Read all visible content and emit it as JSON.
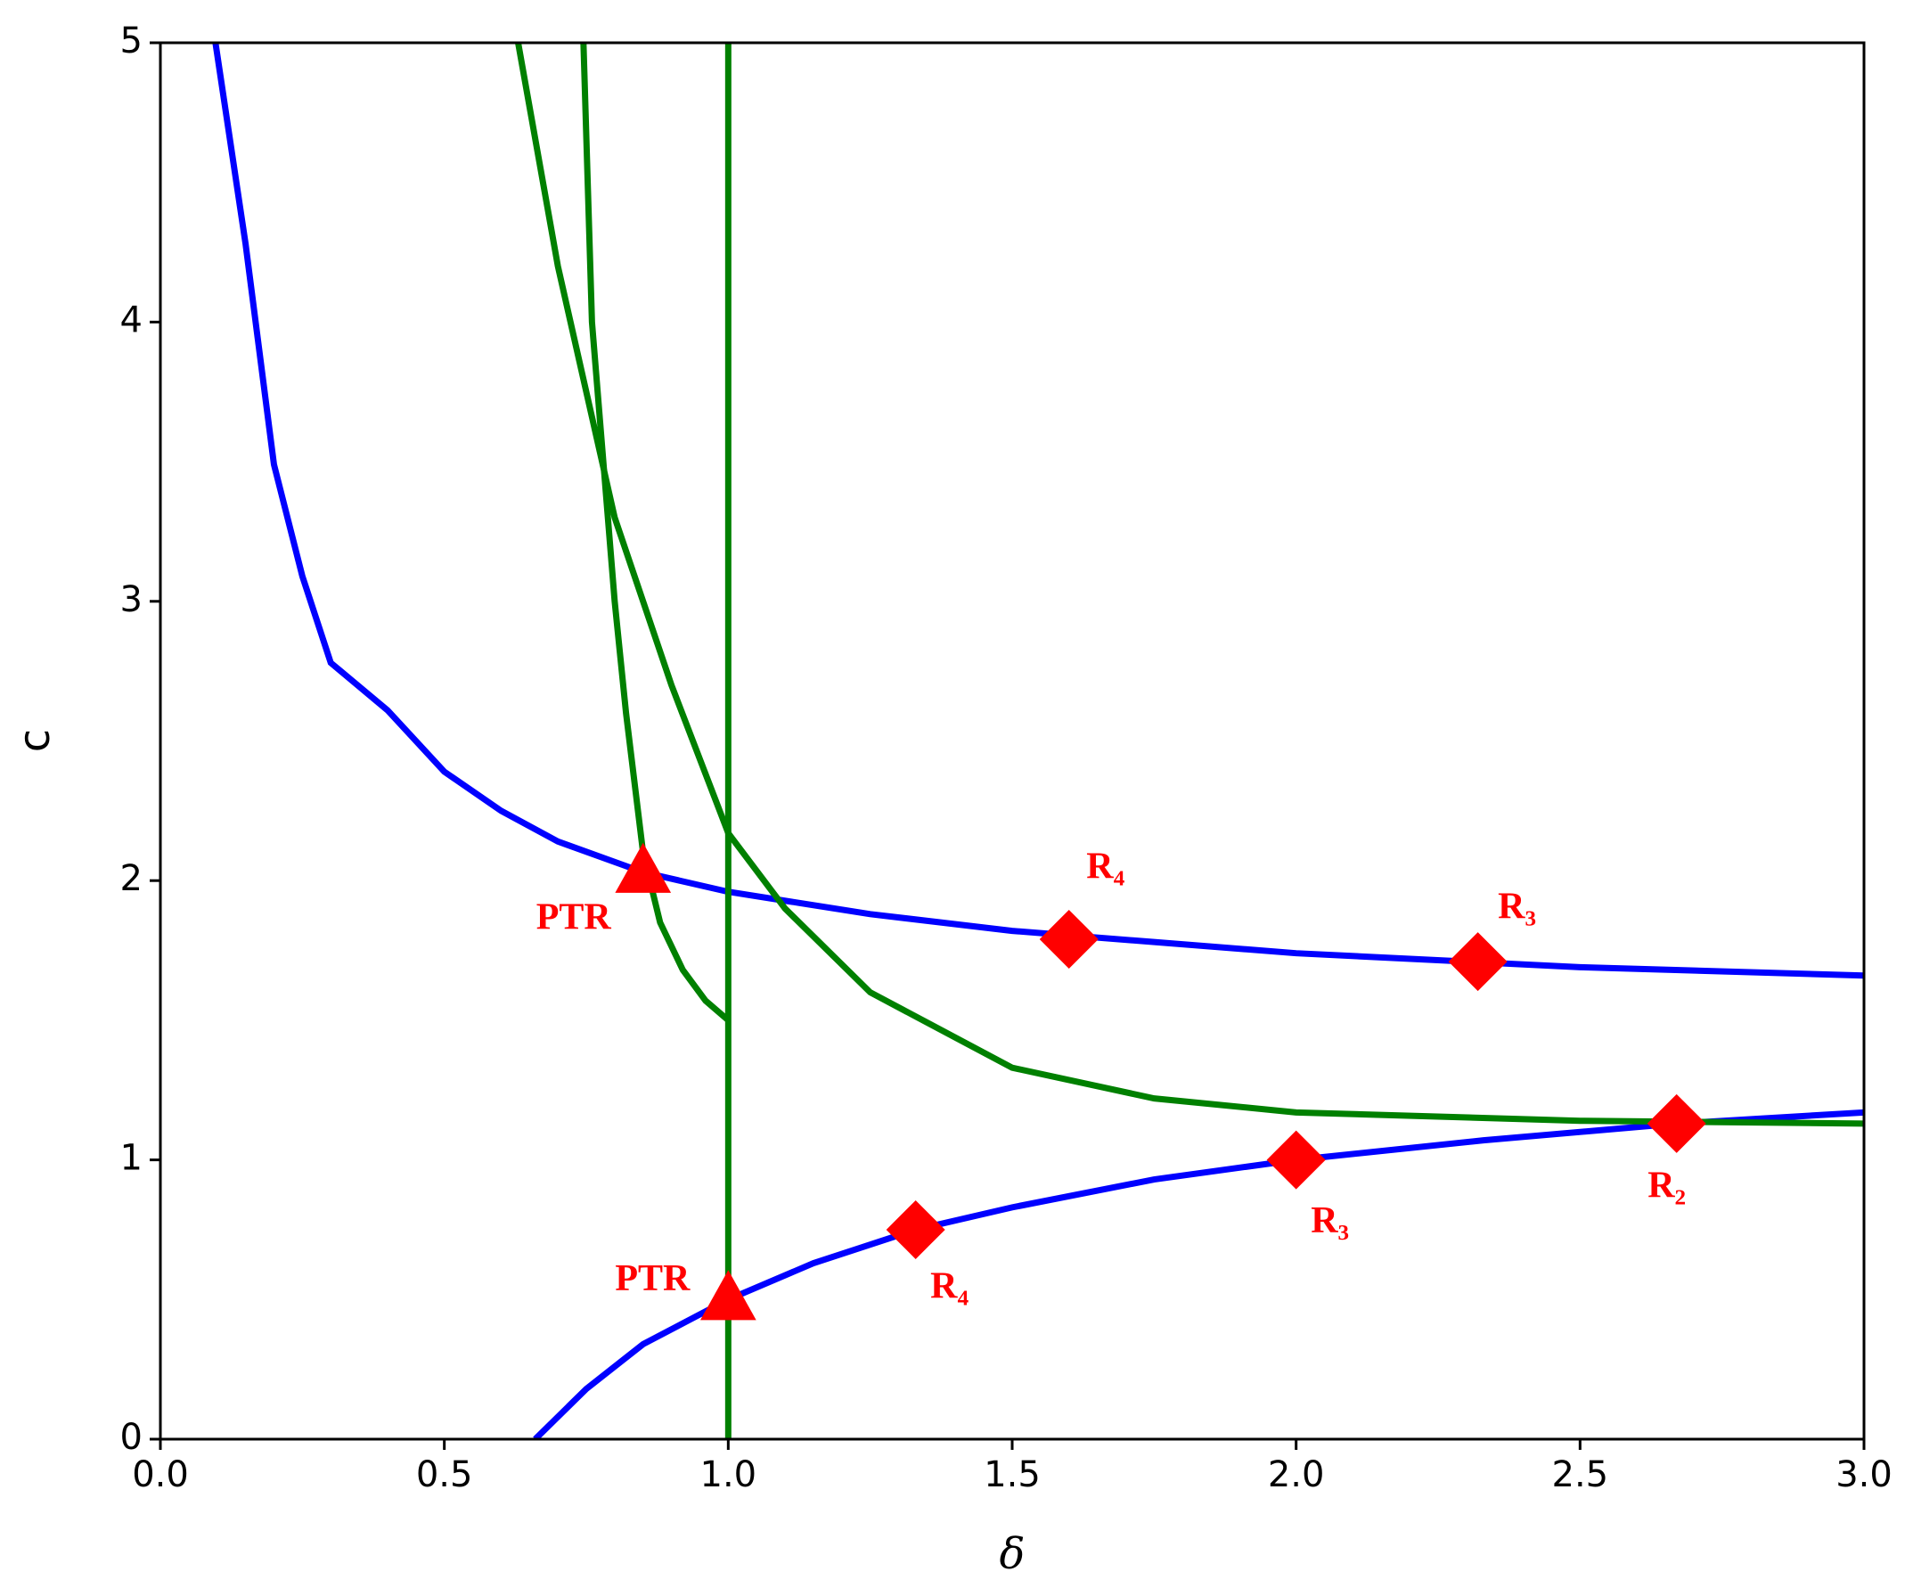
{
  "chart_data": {
    "type": "line",
    "xlabel": "δ",
    "ylabel": "c",
    "xlim": [
      0,
      3
    ],
    "ylim": [
      0,
      5
    ],
    "xticks": [
      {
        "value": 0,
        "label": "0.0"
      },
      {
        "value": 0.5,
        "label": "0.5"
      },
      {
        "value": 1,
        "label": "1.0"
      },
      {
        "value": 1.5,
        "label": "1.5"
      },
      {
        "value": 2,
        "label": "2.0"
      },
      {
        "value": 2.5,
        "label": "2.5"
      },
      {
        "value": 3,
        "label": "3.0"
      }
    ],
    "yticks": [
      0,
      1,
      2,
      3,
      4,
      5
    ],
    "series": [
      {
        "color": "#0000ff",
        "x": [
          0.097,
          0.15,
          0.2,
          0.25,
          0.3,
          0.4,
          0.5,
          0.6,
          0.7,
          0.85,
          1.0,
          1.25,
          1.5,
          1.75,
          2.0,
          2.5,
          3.0
        ],
        "values": [
          5.0,
          4.28,
          3.49,
          3.09,
          2.78,
          2.61,
          2.39,
          2.25,
          2.14,
          2.03,
          1.96,
          1.88,
          1.82,
          1.78,
          1.74,
          1.69,
          1.66
        ]
      },
      {
        "color": "#0000ff",
        "x": [
          0.66,
          0.75,
          0.85,
          1.0,
          1.15,
          1.33,
          1.5,
          1.75,
          2.0,
          2.33,
          2.67,
          3.0
        ],
        "values": [
          0,
          0.18,
          0.34,
          0.5,
          0.63,
          0.75,
          0.83,
          0.93,
          1.0,
          1.07,
          1.13,
          1.17
        ]
      },
      {
        "color": "#008000",
        "x": [
          0.745,
          0.76,
          0.78,
          0.8,
          0.82,
          0.85,
          0.88,
          0.92,
          0.96,
          1.0
        ],
        "values": [
          5.0,
          4.0,
          3.5,
          3.0,
          2.6,
          2.1,
          1.85,
          1.68,
          1.57,
          1.5
        ]
      },
      {
        "color": "#008000",
        "x": [
          0.63,
          0.7,
          0.8,
          0.9,
          1.0,
          1.1,
          1.25,
          1.5,
          1.75,
          2.0,
          2.5,
          3.0
        ],
        "values": [
          5.0,
          4.2,
          3.3,
          2.7,
          2.17,
          1.9,
          1.6,
          1.33,
          1.22,
          1.17,
          1.14,
          1.13
        ]
      },
      {
        "color": "#008000",
        "x": [
          1,
          1
        ],
        "values": [
          0,
          5
        ]
      }
    ],
    "markers": [
      {
        "shape": "diamond",
        "color": "#ff0000",
        "x": [
          1.6,
          2.32,
          1.33,
          2.0,
          2.67
        ],
        "values": [
          1.79,
          1.71,
          0.75,
          1.0,
          1.13
        ],
        "labels": [
          "R₄",
          "R₃",
          "R₄",
          "R₃",
          "R₂"
        ]
      },
      {
        "shape": "triangle",
        "color": "#ff0000",
        "x": [
          0.85,
          1.0
        ],
        "values": [
          2.03,
          0.5
        ],
        "labels": [
          "PTR",
          "PTR"
        ]
      }
    ]
  }
}
